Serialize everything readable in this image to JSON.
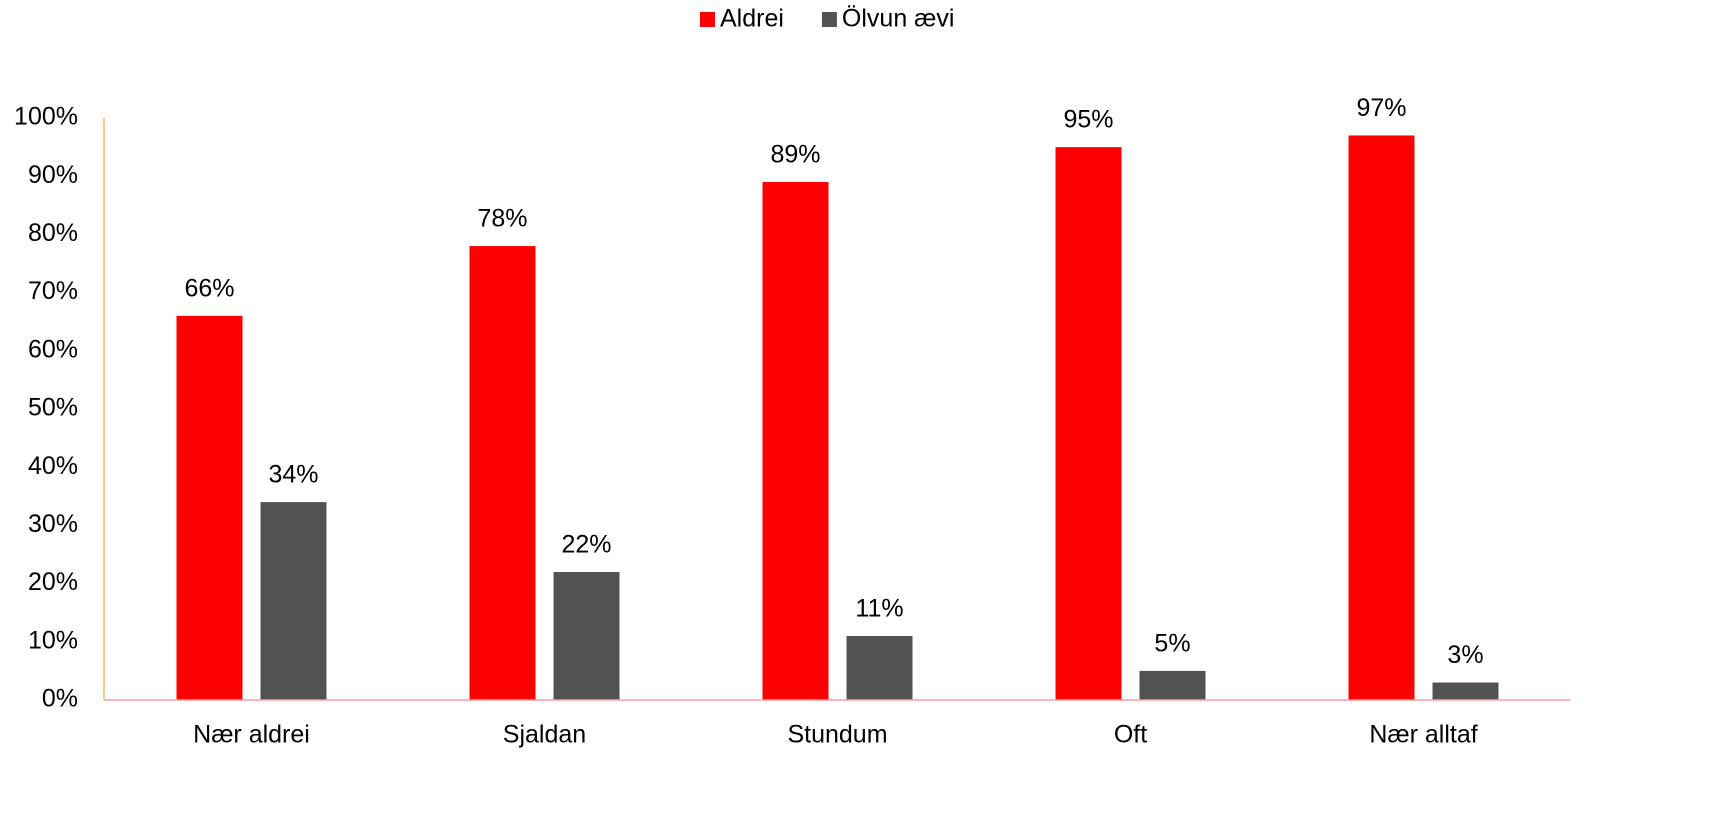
{
  "chart_data": {
    "type": "bar",
    "categories": [
      "Nær aldrei",
      "Sjaldan",
      "Stundum",
      "Oft",
      "Nær alltaf"
    ],
    "series": [
      {
        "name": "Aldrei",
        "color": "#ff0000",
        "values": [
          66,
          78,
          89,
          95,
          97
        ],
        "value_labels": [
          "66%",
          "78%",
          "89%",
          "95%",
          "97%"
        ]
      },
      {
        "name": "Ölvun ævi",
        "color": "#525252",
        "values": [
          34,
          22,
          11,
          5,
          3
        ],
        "value_labels": [
          "34%",
          "22%",
          "11%",
          "5%",
          "3%"
        ]
      }
    ],
    "ylim": [
      0,
      100
    ],
    "yticks": [
      {
        "value": 0,
        "label": "0%"
      },
      {
        "value": 10,
        "label": "10%"
      },
      {
        "value": 20,
        "label": "20%"
      },
      {
        "value": 30,
        "label": "30%"
      },
      {
        "value": 40,
        "label": "40%"
      },
      {
        "value": 50,
        "label": "50%"
      },
      {
        "value": 60,
        "label": "60%"
      },
      {
        "value": 70,
        "label": "70%"
      },
      {
        "value": 80,
        "label": "80%"
      },
      {
        "value": 90,
        "label": "90%"
      },
      {
        "value": 100,
        "label": "100%"
      }
    ],
    "legend": "top",
    "grid": false
  }
}
